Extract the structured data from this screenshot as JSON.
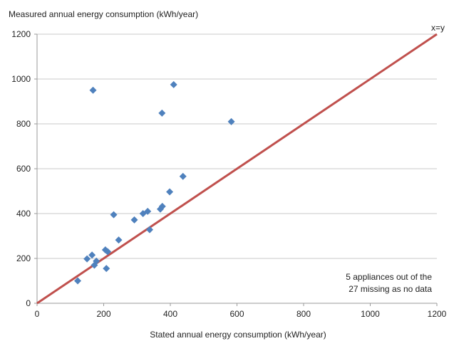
{
  "chart_data": {
    "type": "scatter",
    "ylabel": "Measured annual energy consumption (kWh/year)",
    "xlabel": "Stated annual energy consumption (kWh/year)",
    "xlim": [
      0,
      1200
    ],
    "ylim": [
      0,
      1200
    ],
    "x_ticks": [
      "0",
      "200",
      "400",
      "600",
      "800",
      "1000",
      "1200"
    ],
    "y_ticks": [
      "0",
      "200",
      "400",
      "600",
      "800",
      "1000",
      "1200"
    ],
    "grid": "horizontal",
    "reference_line": {
      "label": "x=y",
      "color": "#c0504d"
    },
    "annotation": [
      "5 appliances out of the",
      "27 missing as no data"
    ],
    "marker_color": "#4f81bd",
    "series": [
      {
        "points": [
          [
            122,
            100
          ],
          [
            150,
            198
          ],
          [
            165,
            215
          ],
          [
            172,
            170
          ],
          [
            178,
            188
          ],
          [
            168,
            950
          ],
          [
            205,
            238
          ],
          [
            208,
            155
          ],
          [
            212,
            230
          ],
          [
            230,
            395
          ],
          [
            245,
            282
          ],
          [
            292,
            372
          ],
          [
            318,
            400
          ],
          [
            332,
            410
          ],
          [
            338,
            328
          ],
          [
            370,
            420
          ],
          [
            376,
            432
          ],
          [
            375,
            848
          ],
          [
            398,
            497
          ],
          [
            410,
            975
          ],
          [
            438,
            566
          ],
          [
            583,
            810
          ]
        ]
      }
    ]
  }
}
